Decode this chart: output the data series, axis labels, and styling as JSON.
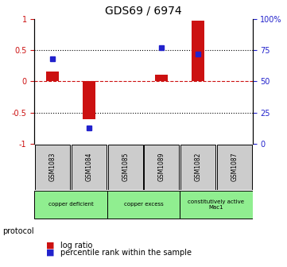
{
  "title": "GDS69 / 6974",
  "samples": [
    "GSM1083",
    "GSM1084",
    "GSM1085",
    "GSM1089",
    "GSM1082",
    "GSM1087"
  ],
  "log_ratio": [
    0.15,
    -0.6,
    0.0,
    0.1,
    0.97,
    0.0
  ],
  "percentile_rank": [
    0.68,
    0.13,
    null,
    0.77,
    0.72,
    null
  ],
  "groups": [
    {
      "label": "copper deficient",
      "span": [
        0,
        2
      ],
      "color": "#90ee90"
    },
    {
      "label": "copper excess",
      "span": [
        2,
        4
      ],
      "color": "#90ee90"
    },
    {
      "label": "constitutively active\nMac1",
      "span": [
        4,
        6
      ],
      "color": "#90ee90"
    }
  ],
  "bar_color_red": "#cc1111",
  "bar_color_blue": "#2222cc",
  "ylim_left": [
    -1,
    1
  ],
  "ylim_right": [
    0,
    100
  ],
  "yticks_left": [
    -1,
    -0.5,
    0,
    0.5,
    1
  ],
  "ytick_labels_left": [
    "-1",
    "-0.5",
    "0",
    "0.5",
    "1"
  ],
  "yticks_right": [
    0,
    25,
    50,
    75,
    100
  ],
  "ytick_labels_right": [
    "0",
    "25",
    "50",
    "75",
    "100%"
  ],
  "hline_y": 0,
  "dotted_lines": [
    -0.5,
    0.5
  ],
  "legend_items": [
    {
      "label": "log ratio",
      "color": "#cc1111"
    },
    {
      "label": "percentile rank within the sample",
      "color": "#2222cc"
    }
  ],
  "protocol_label": "protocol",
  "bar_width": 0.35,
  "fig_bg": "#ffffff"
}
